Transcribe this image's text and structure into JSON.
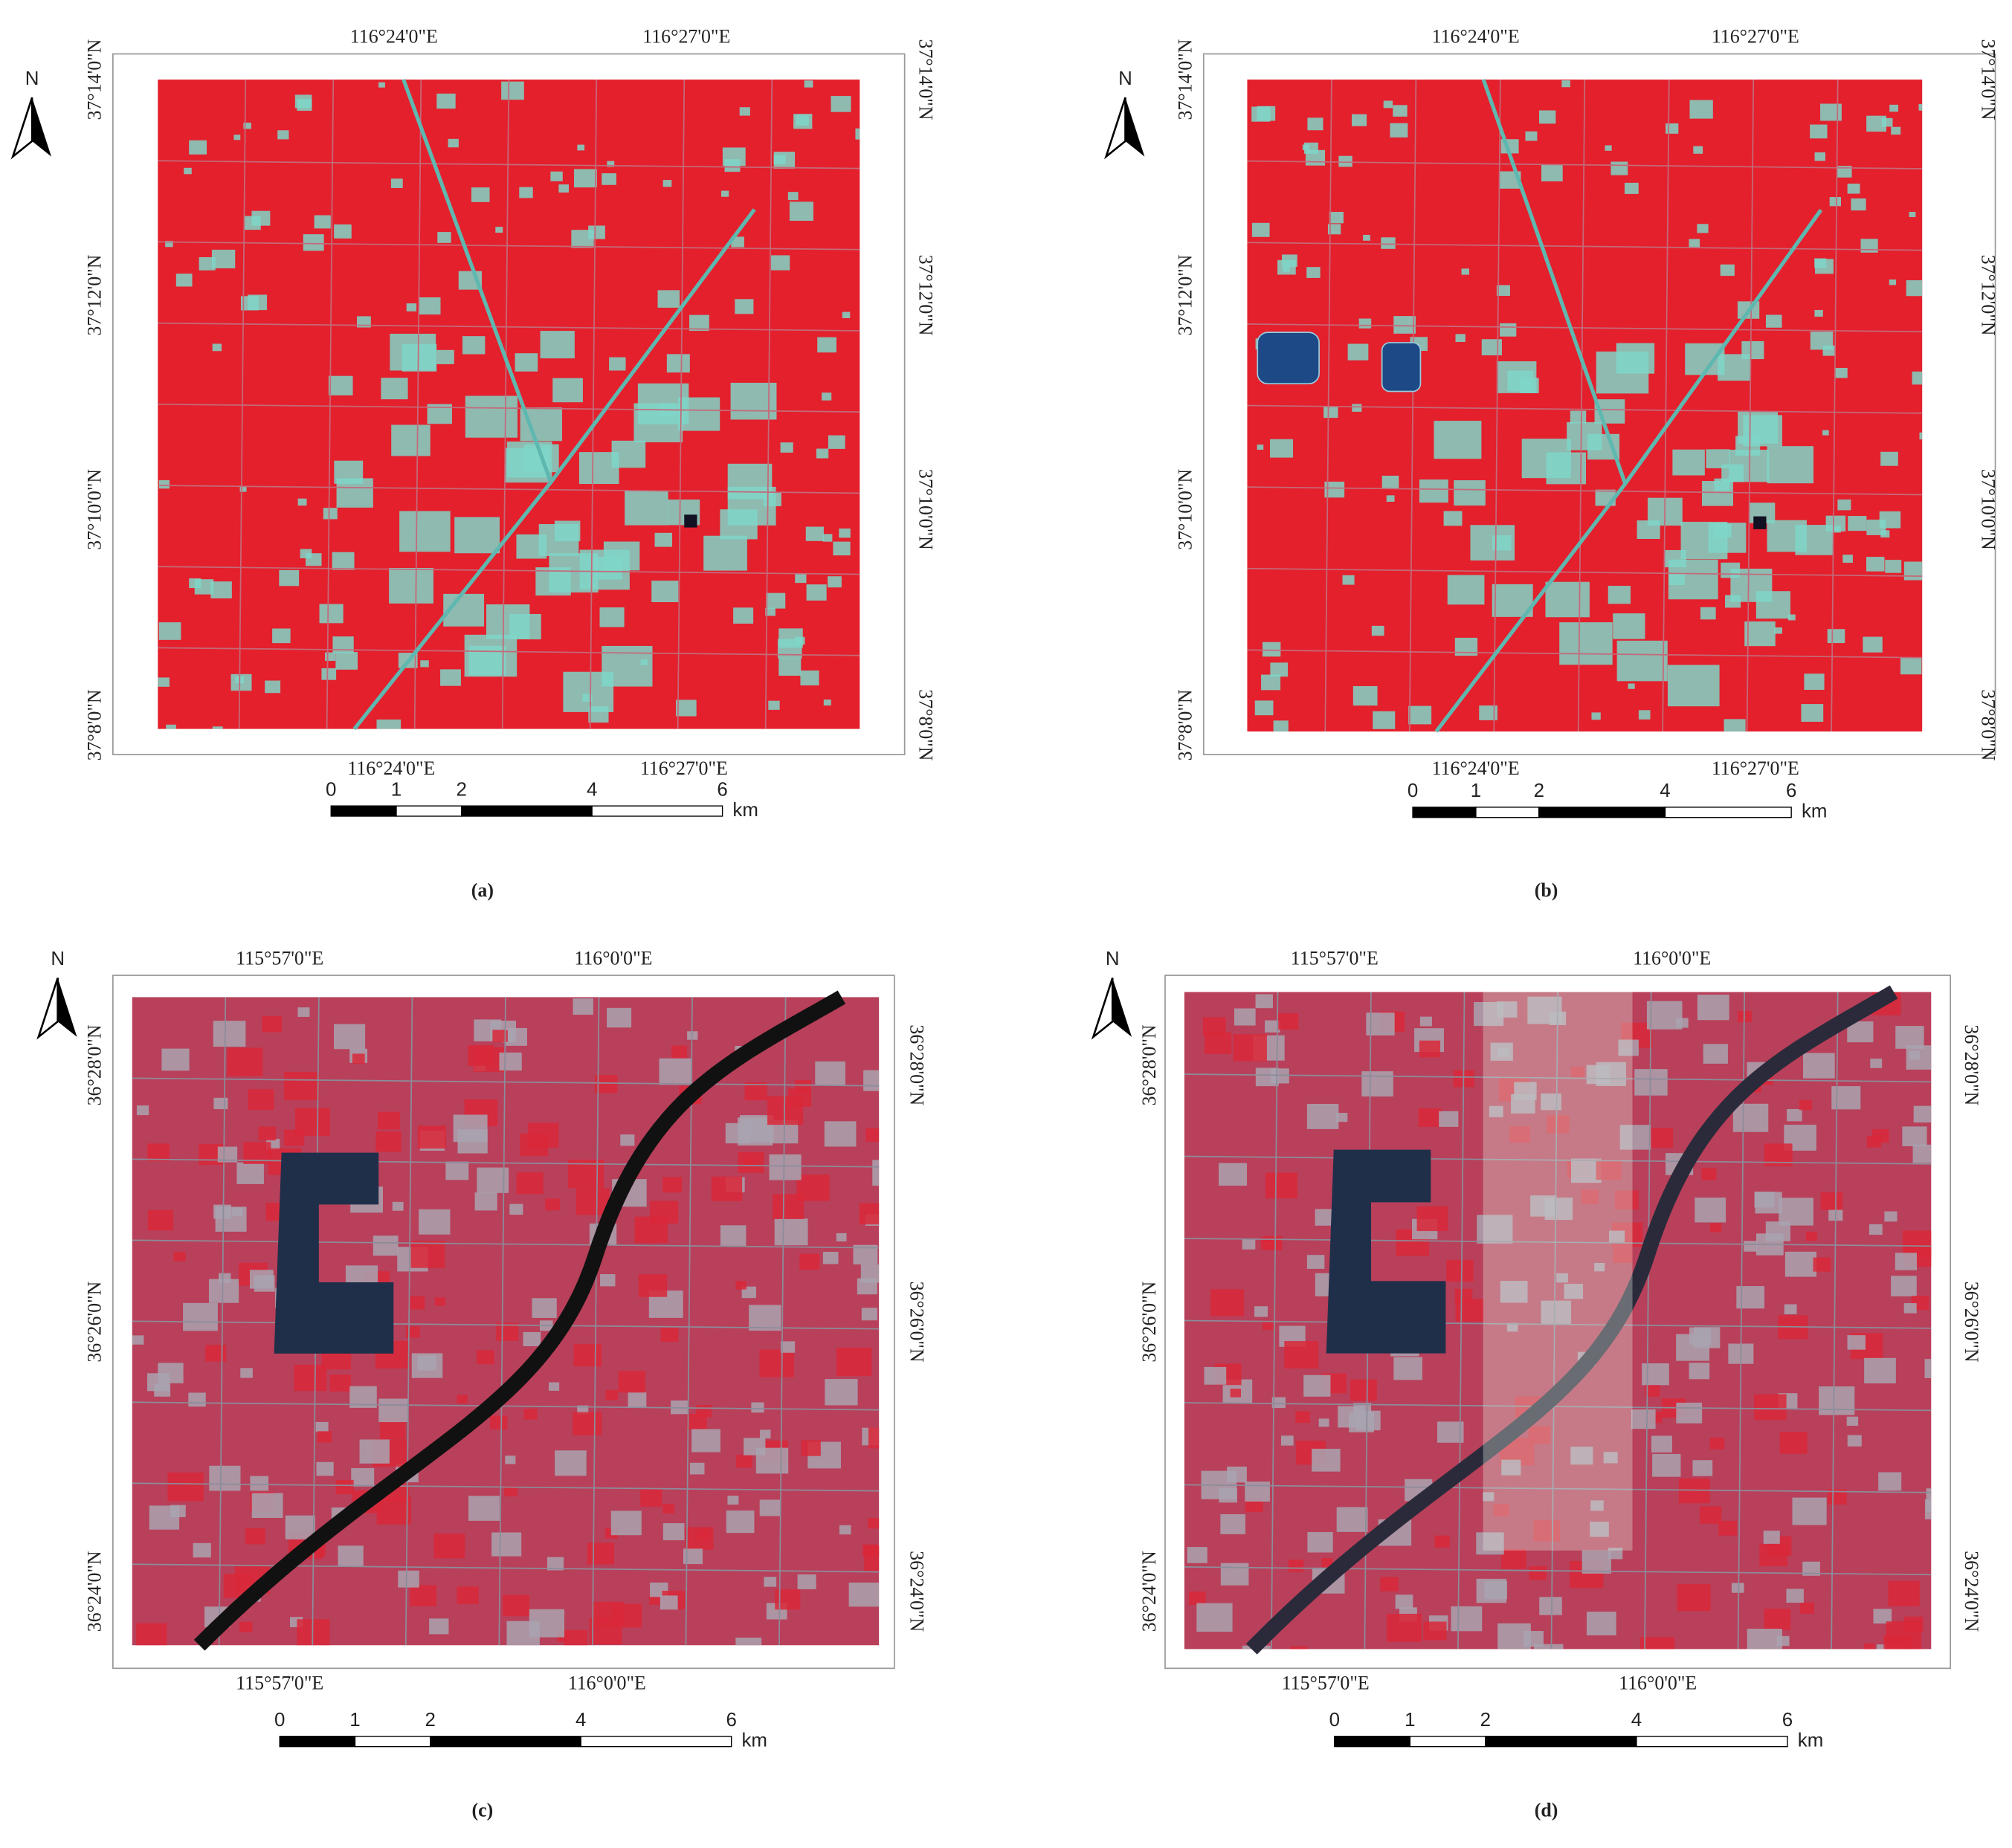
{
  "panels": [
    {
      "caption": "(a)",
      "north": "N",
      "lon_top": [
        "116°24'0\"E",
        "116°27'0\"E"
      ],
      "lon_bottom": [
        "116°24'0\"E",
        "116°27'0\"E"
      ],
      "lat_left": [
        "37°14'0\"N",
        "37°12'0\"N",
        "37°10'0\"N",
        "37°8'0\"N"
      ],
      "lat_right": [
        "37°14'0\"N",
        "37°12'0\"N",
        "37°10'0\"N",
        "37°8'0\"N"
      ],
      "scale_ticks": [
        0,
        1,
        2,
        4,
        6
      ],
      "scale_unit": "km"
    },
    {
      "caption": "(b)",
      "north": "N",
      "lon_top": [
        "116°24'0\"E",
        "116°27'0\"E"
      ],
      "lon_bottom": [
        "116°24'0\"E",
        "116°27'0\"E"
      ],
      "lat_left": [
        "37°14'0\"N",
        "37°12'0\"N",
        "37°10'0\"N",
        "37°8'0\"N"
      ],
      "lat_right": [
        "37°14'0\"N",
        "37°12'0\"N",
        "37°10'0\"N",
        "37°8'0\"N"
      ],
      "scale_ticks": [
        0,
        1,
        2,
        4,
        6
      ],
      "scale_unit": "km"
    },
    {
      "caption": "(c)",
      "north": "N",
      "lon_top": [
        "115°57'0\"E",
        "116°0'0\"E"
      ],
      "lon_bottom": [
        "115°57'0\"E",
        "116°0'0\"E"
      ],
      "lat_left": [
        "36°28'0\"N",
        "36°26'0\"N",
        "36°24'0\"N"
      ],
      "lat_right": [
        "36°28'0\"N",
        "36°26'0\"N",
        "36°24'0\"N"
      ],
      "scale_ticks": [
        0,
        1,
        2,
        4,
        6
      ],
      "scale_unit": "km"
    },
    {
      "caption": "(d)",
      "north": "N",
      "lon_top": [
        "115°57'0\"E",
        "116°0'0\"E"
      ],
      "lon_bottom": [
        "115°57'0\"E",
        "116°0'0\"E"
      ],
      "lat_left": [
        "36°28'0\"N",
        "36°26'0\"N",
        "36°24'0\"N"
      ],
      "lat_right": [
        "36°28'0\"N",
        "36°26'0\"N",
        "36°24'0\"N"
      ],
      "scale_ticks": [
        0,
        1,
        2,
        4,
        6
      ],
      "scale_unit": "km"
    }
  ]
}
